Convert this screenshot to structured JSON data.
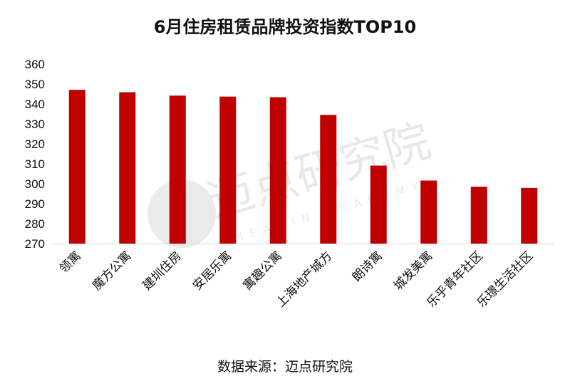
{
  "chart_data": {
    "type": "bar",
    "title": "6月住房租赁品牌投资指数TOP10",
    "categories": [
      "领寓",
      "魔方公寓",
      "建圳住房",
      "安居乐寓",
      "寓趣公寓",
      "上海地产城方",
      "朗诗寓",
      "城发美寓",
      "乐乎青年社区",
      "乐璟生活社区"
    ],
    "values": [
      347.1,
      345.9,
      344.2,
      343.7,
      343.4,
      334.5,
      309.1,
      301.6,
      298.5,
      297.9
    ],
    "ylim": [
      270,
      360
    ],
    "yticks": [
      270,
      280,
      290,
      300,
      310,
      320,
      330,
      340,
      350,
      360
    ],
    "xlabel": "",
    "ylabel": "",
    "grid": false,
    "bar_color": "#c00000"
  },
  "watermark": {
    "cn": "迈点研究院",
    "en": "MEADIN ACADEMY"
  },
  "source": "数据来源：迈点研究院"
}
